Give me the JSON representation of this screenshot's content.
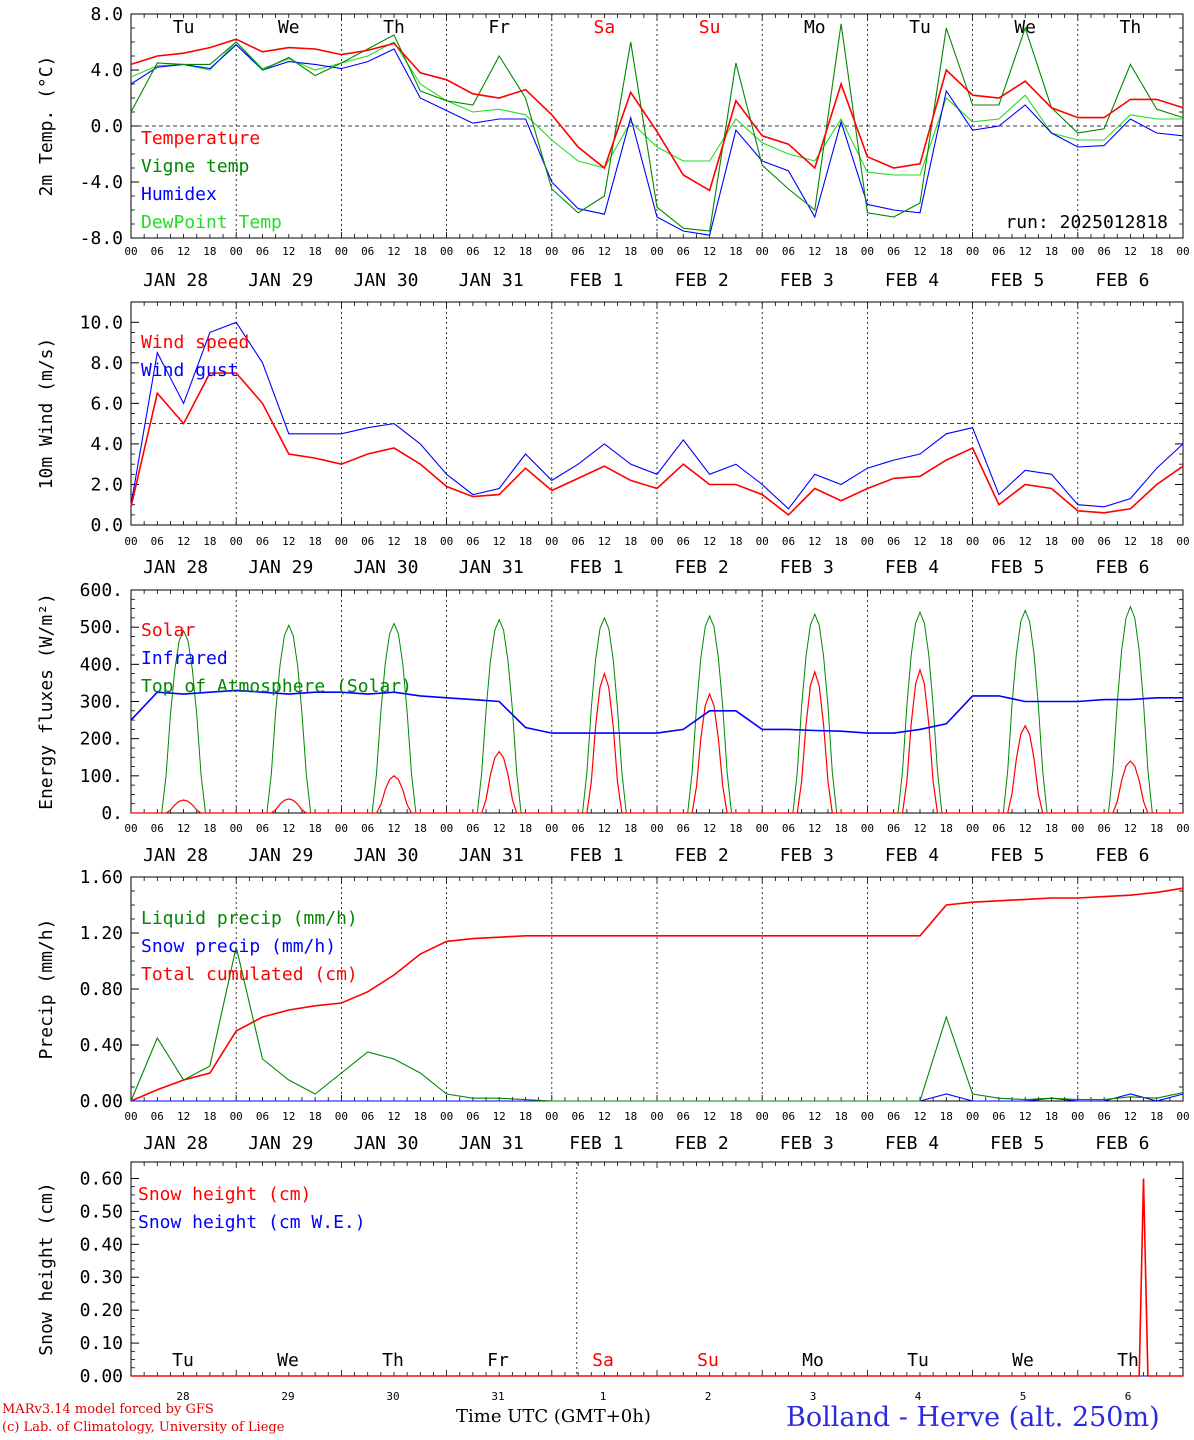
{
  "days": {
    "weekdays": [
      "Tu",
      "We",
      "Th",
      "Fr",
      "Sa",
      "Su",
      "Mo",
      "Tu",
      "We",
      "Th"
    ],
    "weekend_flags": [
      false,
      false,
      false,
      false,
      true,
      true,
      false,
      false,
      false,
      false
    ],
    "dates": [
      "JAN 28",
      "JAN 29",
      "JAN 30",
      "JAN 31",
      "FEB  1",
      "FEB  2",
      "FEB  3",
      "FEB  4",
      "FEB  5",
      "FEB  6"
    ],
    "day_numbers": [
      "28",
      "29",
      "30",
      "31",
      "1",
      "2",
      "3",
      "4",
      "5",
      "6"
    ],
    "hour_ticks": [
      "00",
      "06",
      "12",
      "18"
    ]
  },
  "colors": {
    "red": "#ff0000",
    "green": "#008800",
    "blue": "#0000ff",
    "lightgreen": "#22dd22",
    "grid": "#000000"
  },
  "footer": {
    "model": "MARv3.14 model forced by GFS",
    "lab": "(c) Lab. of Climatology, University of Liege",
    "xaxis_title": "Time UTC (GMT+0h)",
    "station": "Bolland - Herve (alt. 250m)"
  },
  "chart_data": [
    {
      "type": "line",
      "ylabel": "2m Temp. (°C)",
      "ylim": [
        -8,
        8
      ],
      "yticks": [
        "8.0",
        "4.0",
        "0.0",
        "-4.0",
        "-8.0"
      ],
      "ytick_values": [
        8,
        4,
        0,
        -4,
        -8
      ],
      "ref_line": 0,
      "annotation": "run: 2025012818",
      "x_hours": [
        0,
        6,
        12,
        18,
        24,
        30,
        36,
        42,
        48,
        54,
        60,
        66,
        72,
        78,
        84,
        90,
        96,
        102,
        108,
        114,
        120,
        126,
        132,
        138,
        144,
        150,
        156,
        162,
        168,
        174,
        180,
        186,
        192,
        198,
        204,
        210,
        216,
        222,
        228,
        234,
        240
      ],
      "series": [
        {
          "name": "Temperature",
          "color": "red",
          "values": [
            4.4,
            5.0,
            5.2,
            5.6,
            6.2,
            5.3,
            5.6,
            5.5,
            5.1,
            5.4,
            5.9,
            3.8,
            3.3,
            2.3,
            2.0,
            2.6,
            0.8,
            -1.5,
            -3.0,
            2.4,
            -0.4,
            -3.5,
            -4.6,
            1.8,
            -0.7,
            -1.3,
            -3.0,
            3.0,
            -2.2,
            -3.0,
            -2.7,
            4.0,
            2.2,
            2.0,
            3.2,
            1.3,
            0.6,
            0.6,
            1.9,
            1.9,
            1.3
          ]
        },
        {
          "name": "Vigne temp",
          "color": "green",
          "values": [
            1.0,
            4.5,
            4.4,
            4.4,
            6.0,
            4.0,
            4.9,
            3.6,
            4.5,
            5.5,
            6.5,
            2.5,
            1.8,
            1.5,
            5.0,
            2.0,
            -4.5,
            -6.2,
            -5.0,
            6.0,
            -5.8,
            -7.3,
            -7.5,
            4.5,
            -2.8,
            -4.5,
            -6.0,
            7.3,
            -6.2,
            -6.5,
            -5.5,
            7.0,
            1.5,
            1.5,
            7.0,
            1.3,
            -0.5,
            -0.2,
            4.4,
            1.2,
            0.6
          ]
        },
        {
          "name": "Humidex",
          "color": "blue",
          "values": [
            3.0,
            4.2,
            4.4,
            4.1,
            5.8,
            4.0,
            4.6,
            4.4,
            4.1,
            4.6,
            5.5,
            2.0,
            1.1,
            0.2,
            0.5,
            0.5,
            -4.0,
            -5.9,
            -6.3,
            0.6,
            -6.5,
            -7.5,
            -7.8,
            -0.3,
            -2.5,
            -3.2,
            -6.5,
            0.3,
            -5.6,
            -6.0,
            -6.2,
            2.5,
            -0.3,
            0.0,
            1.5,
            -0.5,
            -1.5,
            -1.4,
            0.5,
            -0.5,
            -0.7
          ]
        },
        {
          "name": "DewPoint Temp",
          "color": "lightgreen",
          "values": [
            3.5,
            4.3,
            4.4,
            4.0,
            6.0,
            4.1,
            4.8,
            4.0,
            4.5,
            5.0,
            6.0,
            3.0,
            1.8,
            1.0,
            1.2,
            0.8,
            -1.0,
            -2.5,
            -3.0,
            0.3,
            -1.5,
            -2.5,
            -2.5,
            0.5,
            -1.2,
            -2.0,
            -2.5,
            0.5,
            -3.3,
            -3.5,
            -3.5,
            2.0,
            0.3,
            0.5,
            2.2,
            -0.5,
            -1.0,
            -1.0,
            0.8,
            0.5,
            0.5
          ]
        }
      ]
    },
    {
      "type": "line",
      "ylabel": "10m Wind (m/s)",
      "ylim": [
        0,
        11
      ],
      "yticks": [
        "10.0",
        "8.0",
        "6.0",
        "4.0",
        "2.0",
        "0.0"
      ],
      "ytick_values": [
        10,
        8,
        6,
        4,
        2,
        0
      ],
      "ref_line": 5,
      "x_hours": [
        0,
        6,
        12,
        18,
        24,
        30,
        36,
        42,
        48,
        54,
        60,
        66,
        72,
        78,
        84,
        90,
        96,
        102,
        108,
        114,
        120,
        126,
        132,
        138,
        144,
        150,
        156,
        162,
        168,
        174,
        180,
        186,
        192,
        198,
        204,
        210,
        216,
        222,
        228,
        234,
        240
      ],
      "series": [
        {
          "name": "Wind speed",
          "color": "red",
          "values": [
            0.9,
            6.5,
            5.0,
            7.5,
            7.5,
            6.0,
            3.5,
            3.3,
            3.0,
            3.5,
            3.8,
            3.0,
            1.9,
            1.4,
            1.5,
            2.8,
            1.7,
            2.3,
            2.9,
            2.2,
            1.8,
            3.0,
            2.0,
            2.0,
            1.5,
            0.5,
            1.8,
            1.2,
            1.8,
            2.3,
            2.4,
            3.2,
            3.8,
            1.0,
            2.0,
            1.8,
            0.7,
            0.6,
            0.8,
            2.0,
            2.9
          ]
        },
        {
          "name": "Wind gust",
          "color": "blue",
          "values": [
            1.0,
            8.5,
            6.0,
            9.5,
            10.0,
            8.0,
            4.5,
            4.5,
            4.5,
            4.8,
            5.0,
            4.0,
            2.5,
            1.5,
            1.8,
            3.5,
            2.2,
            3.0,
            4.0,
            3.0,
            2.5,
            4.2,
            2.5,
            3.0,
            2.0,
            0.8,
            2.5,
            2.0,
            2.8,
            3.2,
            3.5,
            4.5,
            4.8,
            1.5,
            2.7,
            2.5,
            1.0,
            0.9,
            1.3,
            2.8,
            4.0
          ]
        }
      ]
    },
    {
      "type": "line",
      "ylabel": "Energy fluxes (W/m²)",
      "ylim": [
        0,
        600
      ],
      "yticks": [
        "600.",
        "500.",
        "400.",
        "300.",
        "200.",
        "100.",
        "0."
      ],
      "ytick_values": [
        600,
        500,
        400,
        300,
        200,
        100,
        0
      ],
      "day_peaks_toa": [
        490,
        505,
        510,
        520,
        525,
        530,
        535,
        540,
        545,
        555
      ],
      "day_peaks_solar": [
        35,
        38,
        100,
        165,
        375,
        320,
        380,
        385,
        235,
        140
      ],
      "series": [
        {
          "name": "Solar",
          "color": "red"
        },
        {
          "name": "Infrared",
          "color": "blue",
          "x_hours": [
            0,
            6,
            12,
            18,
            24,
            30,
            36,
            42,
            48,
            54,
            60,
            66,
            72,
            78,
            84,
            90,
            96,
            102,
            108,
            114,
            120,
            126,
            132,
            138,
            144,
            150,
            156,
            162,
            168,
            174,
            180,
            186,
            192,
            198,
            204,
            210,
            216,
            222,
            228,
            234,
            240
          ],
          "values": [
            250,
            325,
            320,
            325,
            330,
            325,
            320,
            325,
            325,
            320,
            325,
            315,
            310,
            305,
            300,
            230,
            215,
            215,
            215,
            215,
            215,
            225,
            275,
            275,
            225,
            225,
            222,
            220,
            215,
            215,
            225,
            240,
            315,
            315,
            300,
            300,
            300,
            305,
            305,
            310,
            310
          ]
        },
        {
          "name": "Top of Atmosphere (Solar)",
          "color": "green"
        }
      ]
    },
    {
      "type": "line",
      "ylabel": "Precip (mm/h)",
      "ylim": [
        0,
        1.6
      ],
      "yticks": [
        "1.60",
        "1.20",
        "0.80",
        "0.40",
        "0.00"
      ],
      "ytick_values": [
        1.6,
        1.2,
        0.8,
        0.4,
        0
      ],
      "x_hours": [
        0,
        6,
        12,
        18,
        24,
        30,
        36,
        42,
        48,
        54,
        60,
        66,
        72,
        78,
        84,
        90,
        96,
        102,
        108,
        114,
        120,
        126,
        132,
        138,
        144,
        150,
        156,
        162,
        168,
        174,
        180,
        186,
        192,
        198,
        204,
        210,
        216,
        222,
        228,
        234,
        240
      ],
      "series": [
        {
          "name": "Liquid precip (mm/h)",
          "color": "green",
          "values": [
            0,
            0.45,
            0.15,
            0.25,
            1.1,
            0.3,
            0.15,
            0.05,
            0.2,
            0.35,
            0.3,
            0.2,
            0.05,
            0.02,
            0.02,
            0.01,
            0,
            0,
            0,
            0,
            0,
            0,
            0,
            0,
            0,
            0,
            0,
            0,
            0,
            0,
            0,
            0.6,
            0.05,
            0.02,
            0.01,
            0.02,
            0.01,
            0.01,
            0.03,
            0.02,
            0.06
          ]
        },
        {
          "name": "Snow precip (mm/h)",
          "color": "blue",
          "values": [
            0,
            0,
            0,
            0,
            0,
            0,
            0,
            0,
            0,
            0,
            0,
            0,
            0,
            0,
            0,
            0,
            0,
            0,
            0,
            0,
            0,
            0,
            0,
            0,
            0,
            0,
            0,
            0,
            0,
            0,
            0,
            0.05,
            0,
            0,
            0,
            0.02,
            0,
            0,
            0.05,
            0,
            0.05
          ]
        },
        {
          "name": "Total cumulated (cm)",
          "color": "red",
          "values": [
            0,
            0.08,
            0.15,
            0.2,
            0.5,
            0.6,
            0.65,
            0.68,
            0.7,
            0.78,
            0.9,
            1.05,
            1.14,
            1.16,
            1.17,
            1.18,
            1.18,
            1.18,
            1.18,
            1.18,
            1.18,
            1.18,
            1.18,
            1.18,
            1.18,
            1.18,
            1.18,
            1.18,
            1.18,
            1.18,
            1.18,
            1.4,
            1.42,
            1.43,
            1.44,
            1.45,
            1.45,
            1.46,
            1.47,
            1.49,
            1.52
          ]
        }
      ]
    },
    {
      "type": "line",
      "ylabel": "Snow height (cm)",
      "ylim": [
        0,
        0.65
      ],
      "yticks": [
        "0.60",
        "0.50",
        "0.40",
        "0.30",
        "0.20",
        "0.10",
        "0.00"
      ],
      "ytick_values": [
        0.6,
        0.5,
        0.4,
        0.3,
        0.2,
        0.1,
        0
      ],
      "series": [
        {
          "name": "Snow height (cm)",
          "color": "red",
          "x_hours": [
            0,
            228,
            230,
            231,
            232,
            240
          ],
          "values": [
            0,
            0,
            0,
            0.6,
            0,
            0
          ]
        },
        {
          "name": "Snow height (cm W.E.)",
          "color": "blue",
          "x_hours": [
            0,
            240
          ],
          "values": [
            0,
            0
          ]
        }
      ]
    }
  ]
}
